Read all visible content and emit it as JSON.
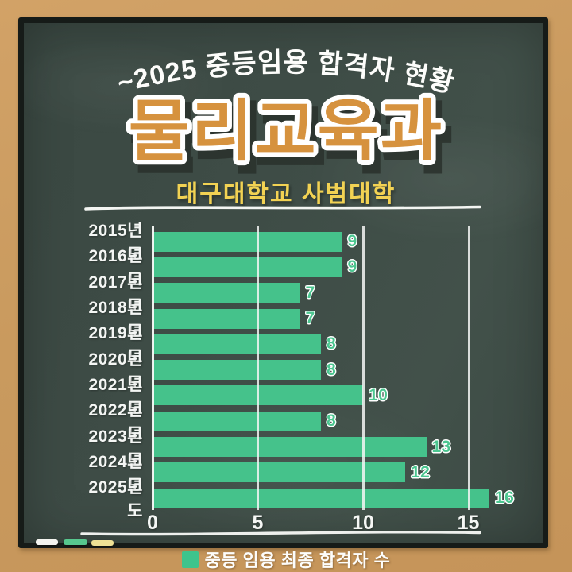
{
  "header": {
    "arc_title": "~2025 중등임용 합격자 현황",
    "main_title": "물리교육과",
    "subtitle": "대구대학교 사범대학"
  },
  "legend": {
    "label": "중등 임용 최종 합격자 수",
    "swatch_color": "#3ec48c"
  },
  "colors": {
    "frame_wood": "#c99a5e",
    "board_green": "#3e4c46",
    "board_border": "#161b18",
    "title_orange": "#d6923e",
    "title_outline": "#ffffff",
    "subtitle_yellow": "#f2d253",
    "chalk_white_text": "#f4f6f4",
    "bar_green": "#45c28b",
    "value_green": "#4cc690"
  },
  "chart_data": {
    "type": "bar",
    "orientation": "horizontal",
    "title": "~2025 중등임용 합격자 현황 — 물리교육과 (대구대학교 사범대학)",
    "categories": [
      "2015년도",
      "2016년도",
      "2017년도",
      "2018년도",
      "2019년도",
      "2020년도",
      "2021년도",
      "2022년도",
      "2023년도",
      "2024년도",
      "2025년도"
    ],
    "values": [
      9,
      9,
      7,
      7,
      8,
      8,
      10,
      8,
      13,
      12,
      16
    ],
    "series_name": "중등 임용 최종 합격자 수",
    "xlabel": "",
    "ylabel": "",
    "xlim": [
      0,
      16.6
    ],
    "xticks": [
      0,
      5,
      10,
      15
    ],
    "grid": true,
    "bar_color": "#45c28b",
    "legend_position": "bottom"
  },
  "decor": {
    "chalk_tray_pieces": [
      "#f4f4f0",
      "#57c78e",
      "#efe296"
    ]
  }
}
